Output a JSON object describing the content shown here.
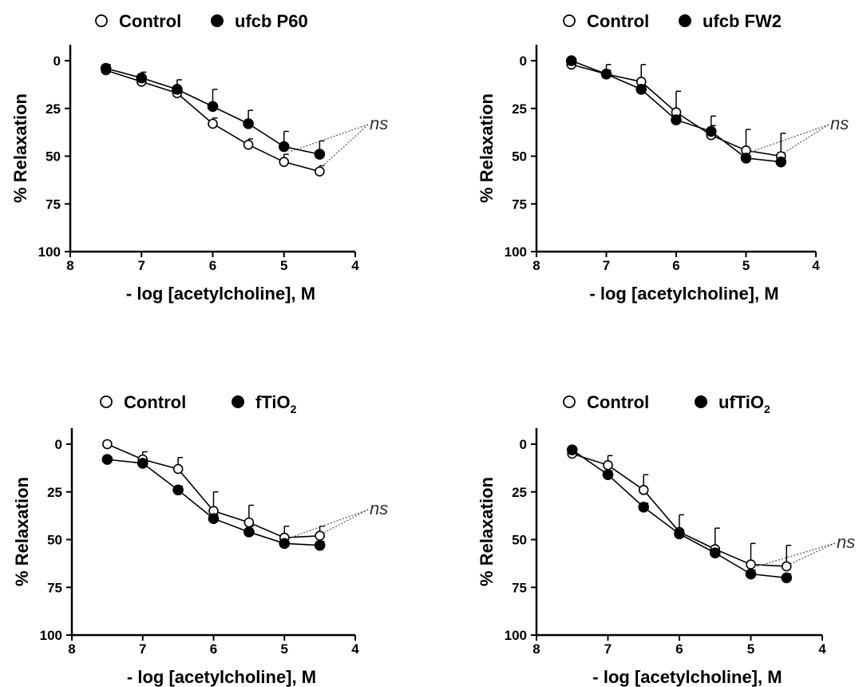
{
  "chart_data": [
    {
      "type": "line",
      "xlabel": "- log [acetylcholine], M",
      "ylabel": "% Relaxation",
      "xlim": [
        8,
        4
      ],
      "ylim": [
        0,
        100
      ],
      "y_inverted": true,
      "xticks": [
        "8",
        "7",
        "6",
        "5",
        "4"
      ],
      "yticks": [
        "0",
        "25",
        "50",
        "75",
        "100"
      ],
      "legend_placement": "top-left",
      "annotation": "ns",
      "series": [
        {
          "name": "Control",
          "marker": "open-circle",
          "color": "#000000",
          "x": [
            7.5,
            7.0,
            6.5,
            6.0,
            5.5,
            5.0,
            4.5
          ],
          "y": [
            5,
            11,
            17,
            33,
            44,
            53,
            58
          ],
          "err": [
            1,
            2,
            2,
            3,
            3,
            4,
            3
          ]
        },
        {
          "name": "ufcb P60",
          "marker": "filled-circle",
          "color": "#000000",
          "x": [
            7.5,
            7.0,
            6.5,
            6.0,
            5.5,
            5.0,
            4.5
          ],
          "y": [
            4,
            9,
            15,
            24,
            33,
            45,
            49
          ],
          "err": [
            2,
            3,
            5,
            9,
            7,
            8,
            7
          ]
        }
      ]
    },
    {
      "type": "line",
      "xlabel": "- log [acetylcholine], M",
      "ylabel": "% Relaxation",
      "xlim": [
        8,
        4
      ],
      "ylim": [
        0,
        100
      ],
      "y_inverted": true,
      "xticks": [
        "8",
        "7",
        "6",
        "5",
        "4"
      ],
      "yticks": [
        "0",
        "25",
        "50",
        "75",
        "100"
      ],
      "legend_placement": "top-left",
      "annotation": "ns",
      "series": [
        {
          "name": "Control",
          "marker": "open-circle",
          "color": "#000000",
          "x": [
            7.5,
            7.0,
            6.5,
            6.0,
            5.5,
            5.0,
            4.5
          ],
          "y": [
            2,
            7,
            11,
            27,
            39,
            47,
            50
          ],
          "err": [
            1,
            5,
            9,
            11,
            10,
            11,
            12
          ]
        },
        {
          "name": "ufcb FW2",
          "marker": "filled-circle",
          "color": "#000000",
          "x": [
            7.5,
            7.0,
            6.5,
            6.0,
            5.5,
            5.0,
            4.5
          ],
          "y": [
            0,
            7,
            15,
            31,
            37,
            51,
            53
          ],
          "err": [
            1,
            2,
            2,
            2,
            3,
            3,
            2
          ]
        }
      ]
    },
    {
      "type": "line",
      "xlabel": "- log [acetylcholine], M",
      "ylabel": "% Relaxation",
      "xlim": [
        8,
        4
      ],
      "ylim": [
        0,
        100
      ],
      "y_inverted": true,
      "xticks": [
        "8",
        "7",
        "6",
        "5",
        "4"
      ],
      "yticks": [
        "0",
        "25",
        "50",
        "75",
        "100"
      ],
      "legend_placement": "top-left",
      "annotation": "ns",
      "legend_label_parts": {
        "main": "fTiO",
        "sub": "2"
      },
      "series": [
        {
          "name": "Control",
          "marker": "open-circle",
          "color": "#000000",
          "x": [
            7.5,
            7.0,
            6.5,
            6.0,
            5.5,
            5.0,
            4.5
          ],
          "y": [
            0,
            8,
            13,
            35,
            41,
            49,
            48
          ],
          "err": [
            1,
            4,
            6,
            10,
            9,
            6,
            5
          ]
        },
        {
          "name": "fTiO2",
          "marker": "filled-circle",
          "color": "#000000",
          "x": [
            7.5,
            7.0,
            6.5,
            6.0,
            5.5,
            5.0,
            4.5
          ],
          "y": [
            8,
            10,
            24,
            39,
            46,
            52,
            53
          ],
          "err": [
            1,
            2,
            2,
            2,
            3,
            2,
            2
          ]
        }
      ]
    },
    {
      "type": "line",
      "xlabel": "- log [acetylcholine], M",
      "ylabel": "% Relaxation",
      "xlim": [
        8,
        4
      ],
      "ylim": [
        0,
        100
      ],
      "y_inverted": true,
      "xticks": [
        "8",
        "7",
        "6",
        "5",
        "4"
      ],
      "yticks": [
        "0",
        "25",
        "50",
        "75",
        "100"
      ],
      "legend_placement": "top-left",
      "annotation": "ns",
      "legend_label_parts": {
        "main": "ufTiO",
        "sub": "2"
      },
      "series": [
        {
          "name": "Control",
          "marker": "open-circle",
          "color": "#000000",
          "x": [
            7.5,
            7.0,
            6.5,
            6.0,
            5.5,
            5.0,
            4.5
          ],
          "y": [
            5,
            11,
            24,
            46,
            55,
            63,
            64
          ],
          "err": [
            1,
            5,
            8,
            9,
            11,
            11,
            11
          ]
        },
        {
          "name": "ufTiO2",
          "marker": "filled-circle",
          "color": "#000000",
          "x": [
            7.5,
            7.0,
            6.5,
            6.0,
            5.5,
            5.0,
            4.5
          ],
          "y": [
            3,
            16,
            33,
            47,
            57,
            68,
            70
          ],
          "err": [
            1,
            2,
            2,
            2,
            2,
            2,
            2
          ]
        }
      ]
    }
  ]
}
